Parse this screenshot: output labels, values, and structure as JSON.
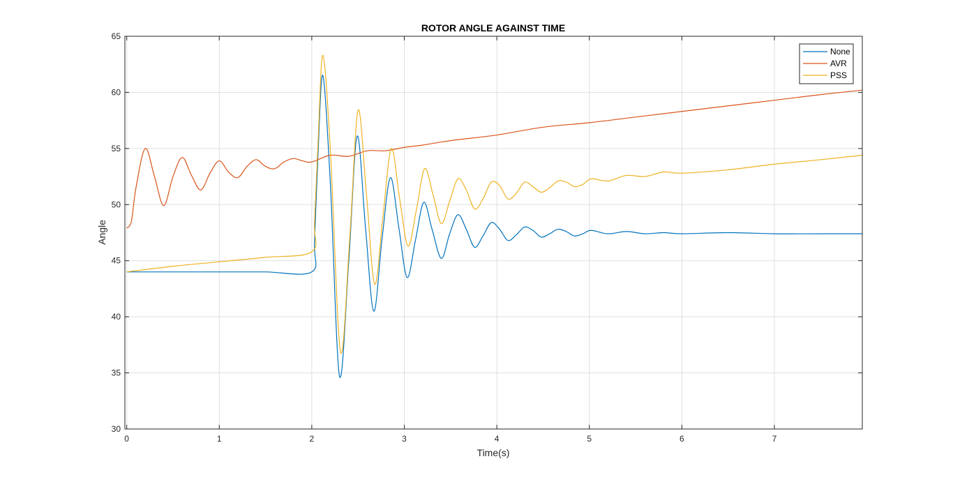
{
  "chart_data": {
    "type": "line",
    "title": "ROTOR ANGLE AGAINST TIME",
    "xlabel": "Time(s)",
    "ylabel": "Angle",
    "xlim": [
      -0.02,
      7.95
    ],
    "ylim": [
      30,
      65
    ],
    "xticks": [
      0,
      1,
      2,
      3,
      4,
      5,
      6,
      7
    ],
    "yticks": [
      30,
      35,
      40,
      45,
      50,
      55,
      60,
      65
    ],
    "grid": true,
    "legend_position": "top-right",
    "series": [
      {
        "name": "None",
        "color": "#0072BD",
        "x": [
          0,
          0.5,
          1.0,
          1.5,
          2.0,
          2.03,
          2.07,
          2.12,
          2.2,
          2.3,
          2.4,
          2.49,
          2.58,
          2.67,
          2.76,
          2.85,
          2.94,
          3.03,
          3.12,
          3.21,
          3.3,
          3.4,
          3.49,
          3.58,
          3.67,
          3.76,
          3.85,
          3.94,
          4.03,
          4.12,
          4.21,
          4.3,
          4.39,
          4.48,
          4.57,
          4.66,
          4.75,
          4.84,
          4.93,
          5.02,
          5.2,
          5.4,
          5.6,
          5.8,
          6.0,
          6.5,
          7.0,
          7.5,
          7.95
        ],
        "y": [
          44.0,
          44.0,
          44.0,
          44.0,
          44.0,
          46.8,
          55.0,
          61.5,
          52.0,
          34.7,
          45.0,
          56.1,
          48.0,
          40.5,
          47.0,
          52.4,
          48.0,
          43.5,
          46.8,
          50.2,
          47.8,
          45.2,
          47.4,
          49.1,
          47.8,
          46.2,
          47.2,
          48.4,
          47.8,
          46.8,
          47.3,
          48.0,
          47.7,
          47.1,
          47.4,
          47.8,
          47.6,
          47.2,
          47.4,
          47.7,
          47.4,
          47.6,
          47.4,
          47.5,
          47.4,
          47.5,
          47.4,
          47.4,
          47.4
        ]
      },
      {
        "name": "AVR",
        "color": "#D95319",
        "x": [
          0,
          0.05,
          0.1,
          0.2,
          0.3,
          0.4,
          0.5,
          0.6,
          0.7,
          0.8,
          0.9,
          1.0,
          1.1,
          1.2,
          1.3,
          1.4,
          1.5,
          1.6,
          1.7,
          1.8,
          1.9,
          2.0,
          2.2,
          2.4,
          2.6,
          2.8,
          3.0,
          3.2,
          3.5,
          4.0,
          4.5,
          5.0,
          5.5,
          6.0,
          6.5,
          7.0,
          7.5,
          7.95
        ],
        "y": [
          47.9,
          48.5,
          51.5,
          55.0,
          52.5,
          49.9,
          52.5,
          54.2,
          52.6,
          51.3,
          52.8,
          53.9,
          52.9,
          52.4,
          53.4,
          54.0,
          53.4,
          53.2,
          53.8,
          54.1,
          53.9,
          53.8,
          54.4,
          54.3,
          54.8,
          54.8,
          55.1,
          55.3,
          55.7,
          56.2,
          56.9,
          57.3,
          57.8,
          58.3,
          58.8,
          59.3,
          59.8,
          60.2
        ]
      },
      {
        "name": "PSS",
        "color": "#EDB120",
        "x": [
          0,
          0.5,
          1.0,
          1.5,
          2.0,
          2.03,
          2.07,
          2.12,
          2.2,
          2.31,
          2.41,
          2.5,
          2.59,
          2.68,
          2.77,
          2.86,
          2.95,
          3.04,
          3.13,
          3.22,
          3.31,
          3.4,
          3.49,
          3.58,
          3.67,
          3.76,
          3.85,
          3.94,
          4.03,
          4.12,
          4.21,
          4.3,
          4.39,
          4.48,
          4.57,
          4.66,
          4.75,
          4.84,
          4.93,
          5.02,
          5.2,
          5.4,
          5.6,
          5.8,
          6.0,
          6.5,
          7.0,
          7.5,
          7.95
        ],
        "y": [
          44.0,
          44.5,
          44.9,
          45.3,
          45.8,
          48.5,
          56.0,
          63.3,
          55.0,
          36.9,
          47.0,
          58.4,
          51.0,
          42.9,
          49.0,
          55.0,
          50.5,
          46.3,
          49.5,
          53.2,
          50.9,
          48.3,
          50.3,
          52.3,
          51.3,
          49.6,
          50.5,
          52.0,
          51.7,
          50.5,
          51.0,
          52.0,
          51.6,
          51.1,
          51.5,
          52.1,
          52.0,
          51.6,
          51.8,
          52.3,
          52.1,
          52.6,
          52.5,
          52.9,
          52.8,
          53.1,
          53.6,
          54.0,
          54.4
        ]
      }
    ]
  }
}
